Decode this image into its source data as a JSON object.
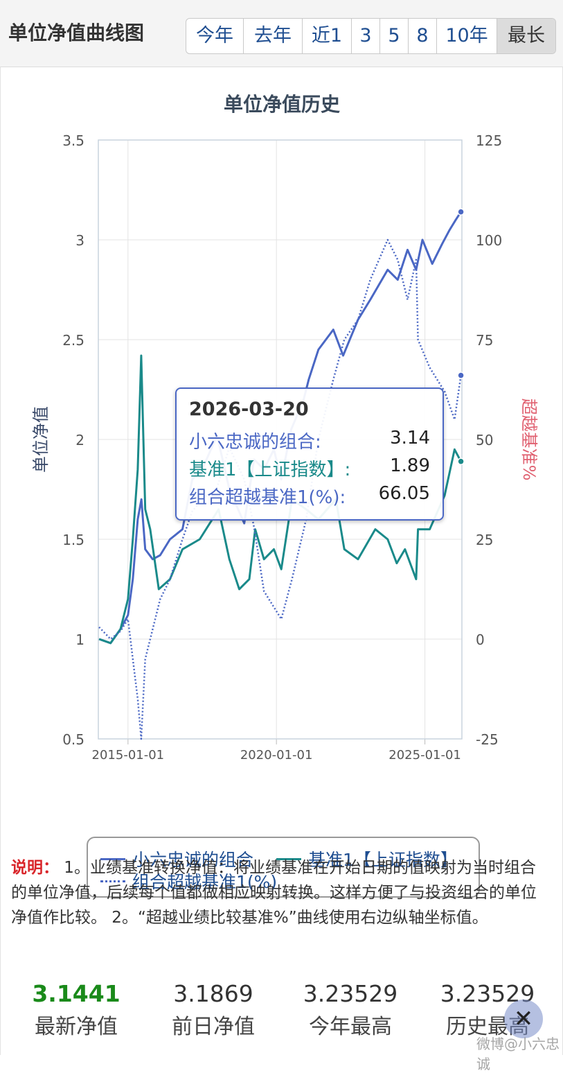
{
  "header": {
    "title": "单位净值曲线图",
    "ranges": [
      {
        "label": "今年",
        "active": false
      },
      {
        "label": "去年",
        "active": false
      },
      {
        "label": "近1",
        "active": false
      },
      {
        "label": "3",
        "active": false
      },
      {
        "label": "5",
        "active": false
      },
      {
        "label": "8",
        "active": false
      },
      {
        "label": "10年",
        "active": false
      },
      {
        "label": "最长",
        "active": true
      }
    ]
  },
  "chart_data": {
    "type": "line",
    "title": "单位净值历史",
    "ylabel_left": "单位净值",
    "ylabel_right": "超越基准%",
    "ylim_left": [
      0.5,
      3.5
    ],
    "ylim_right": [
      -25,
      125
    ],
    "yticks_left": [
      "0.5",
      "1",
      "1.5",
      "2",
      "2.5",
      "3",
      "3.5"
    ],
    "yticks_right": [
      "-25",
      "0",
      "25",
      "50",
      "75",
      "100",
      "125"
    ],
    "xlim": [
      "2014-01-01",
      "2026-04-01"
    ],
    "xticks": [
      {
        "label": "2015-01-01",
        "date": "2015-01-01"
      },
      {
        "label": "2020-01-01",
        "date": "2020-01-01"
      },
      {
        "label": "2025-01-01",
        "date": "2025-01-01"
      }
    ],
    "grid": true,
    "legend_position": "bottom",
    "series": [
      {
        "name": "小六忠诚的组合",
        "axis": "left",
        "color": "#4a67c4",
        "style": "solid",
        "x": [
          "2014-01-10",
          "2014-06-01",
          "2014-10-01",
          "2015-01-01",
          "2015-03-01",
          "2015-05-01",
          "2015-06-15",
          "2015-08-01",
          "2015-11-01",
          "2016-02-01",
          "2016-06-01",
          "2016-11-01",
          "2017-03-01",
          "2017-07-01",
          "2018-01-01",
          "2018-06-01",
          "2018-12-01",
          "2019-04-01",
          "2019-08-01",
          "2019-12-01",
          "2020-03-01",
          "2020-07-01",
          "2020-12-01",
          "2021-02-01",
          "2021-06-01",
          "2021-12-01",
          "2022-04-01",
          "2022-10-01",
          "2023-03-01",
          "2023-10-01",
          "2024-02-01",
          "2024-06-01",
          "2024-09-15",
          "2024-12-01",
          "2025-04-01",
          "2025-08-01",
          "2025-11-01",
          "2026-01-15",
          "2026-03-20"
        ],
        "values": [
          1.0,
          0.98,
          1.05,
          1.12,
          1.3,
          1.6,
          1.7,
          1.45,
          1.4,
          1.42,
          1.5,
          1.55,
          1.8,
          1.85,
          2.02,
          1.75,
          1.58,
          1.9,
          1.85,
          1.95,
          1.8,
          2.05,
          2.2,
          2.3,
          2.45,
          2.55,
          2.42,
          2.6,
          2.7,
          2.85,
          2.8,
          2.95,
          2.85,
          3.0,
          2.88,
          2.98,
          3.05,
          3.1,
          3.14
        ]
      },
      {
        "name": "基准1【上证指数】",
        "axis": "left",
        "color": "#1a8a8a",
        "style": "solid",
        "x": [
          "2014-01-10",
          "2014-06-01",
          "2014-10-01",
          "2015-01-01",
          "2015-03-01",
          "2015-05-01",
          "2015-06-12",
          "2015-08-01",
          "2015-10-01",
          "2016-01-15",
          "2016-06-01",
          "2016-11-01",
          "2017-06-01",
          "2018-01-20",
          "2018-06-01",
          "2018-10-01",
          "2019-02-01",
          "2019-04-15",
          "2019-08-01",
          "2019-12-01",
          "2020-03-01",
          "2020-07-10",
          "2021-01-01",
          "2021-06-01",
          "2022-01-01",
          "2022-04-15",
          "2022-10-01",
          "2023-05-01",
          "2023-10-01",
          "2024-01-20",
          "2024-05-01",
          "2024-09-15",
          "2024-10-08",
          "2025-03-01",
          "2025-09-01",
          "2026-01-01",
          "2026-03-20"
        ],
        "values": [
          1.0,
          0.98,
          1.05,
          1.2,
          1.5,
          1.85,
          2.42,
          1.65,
          1.55,
          1.25,
          1.3,
          1.45,
          1.5,
          1.65,
          1.4,
          1.25,
          1.3,
          1.55,
          1.4,
          1.45,
          1.35,
          1.7,
          1.65,
          1.6,
          1.7,
          1.45,
          1.4,
          1.55,
          1.5,
          1.38,
          1.45,
          1.3,
          1.55,
          1.55,
          1.72,
          1.95,
          1.89
        ]
      },
      {
        "name": "组合超越基准1(%)",
        "axis": "right",
        "color": "#4a67c4",
        "style": "dotted",
        "x": [
          "2014-01-10",
          "2014-06-01",
          "2014-10-01",
          "2015-01-01",
          "2015-03-01",
          "2015-05-01",
          "2015-06-12",
          "2015-08-01",
          "2015-10-01",
          "2016-02-01",
          "2016-06-01",
          "2016-11-01",
          "2017-03-01",
          "2017-07-01",
          "2018-01-01",
          "2018-06-01",
          "2018-12-01",
          "2019-04-01",
          "2019-08-01",
          "2019-12-01",
          "2020-03-01",
          "2020-07-10",
          "2021-01-01",
          "2021-06-01",
          "2021-12-01",
          "2022-04-15",
          "2022-10-01",
          "2023-03-01",
          "2023-10-01",
          "2024-02-01",
          "2024-06-01",
          "2024-09-15",
          "2024-10-08",
          "2025-03-01",
          "2025-09-01",
          "2026-01-01",
          "2026-03-20"
        ],
        "values": [
          3,
          0,
          2,
          5,
          -5,
          -15,
          -25,
          -5,
          0,
          10,
          15,
          25,
          32,
          35,
          38,
          48,
          40,
          28,
          12,
          8,
          5,
          15,
          30,
          50,
          65,
          75,
          80,
          90,
          100,
          95,
          85,
          95,
          75,
          68,
          62,
          55,
          66.05
        ]
      }
    ],
    "tooltip": {
      "date": "2026-03-20",
      "rows": [
        {
          "label": "小六忠诚的组合:",
          "value": "3.14",
          "color": "#4a67c4"
        },
        {
          "label": "基准1【上证指数】:",
          "value": "1.89",
          "color": "#1a8a8a"
        },
        {
          "label": "组合超越基准1(%):",
          "value": "66.05",
          "color": "#4a67c4"
        }
      ]
    }
  },
  "note": {
    "label": "说明：",
    "text": " 1。业绩基准转换净值：将业绩基准在开始日期的值映射为当时组合的单位净值，后续每个值都做相应映射转换。这样方便了与投资组合的单位净值作比较。 2。“超越业绩比较基准%”曲线使用右边纵轴坐标值。"
  },
  "stats": [
    {
      "value": "3.1441",
      "label": "最新净值",
      "highlight": true
    },
    {
      "value": "3.1869",
      "label": "前日净值",
      "highlight": false
    },
    {
      "value": "3.23529",
      "label": "今年最高",
      "highlight": false
    },
    {
      "value": "3.23529",
      "label": "历史最高",
      "highlight": false
    }
  ],
  "close_icon": "close-icon",
  "watermark": "微博@小六忠诚"
}
